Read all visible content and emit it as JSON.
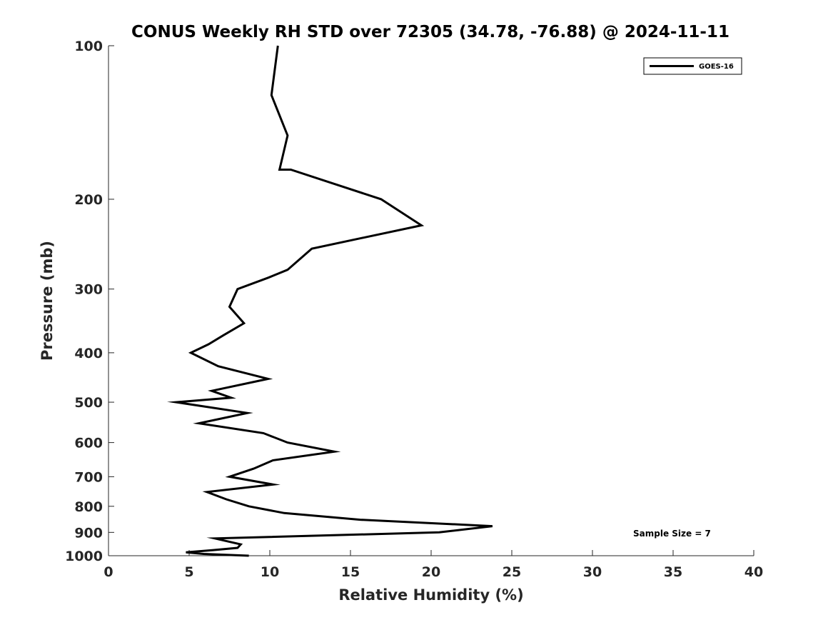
{
  "chart_data": {
    "type": "line",
    "title": "CONUS Weekly RH STD over 72305 (34.78, -76.88) @ 2024-11-11",
    "xlabel": "Relative Humidity (%)",
    "ylabel": "Pressure (mb)",
    "xlim": [
      0,
      40
    ],
    "ylim": [
      100,
      1000
    ],
    "y_scale": "log",
    "y_direction": "reversed",
    "grid": false,
    "legend_position": "top-right",
    "x_ticks": [
      0,
      5,
      10,
      15,
      20,
      25,
      30,
      35,
      40
    ],
    "y_ticks": [
      100,
      200,
      300,
      400,
      500,
      600,
      700,
      800,
      900,
      1000
    ],
    "annotation": "Sample Size = 7",
    "series": [
      {
        "name": "GOES-16",
        "color": "#000000",
        "points": [
          {
            "x": 10.5,
            "y": 100
          },
          {
            "x": 10.1,
            "y": 125
          },
          {
            "x": 11.1,
            "y": 150
          },
          {
            "x": 10.6,
            "y": 175
          },
          {
            "x": 11.3,
            "y": 175
          },
          {
            "x": 16.9,
            "y": 200
          },
          {
            "x": 19.4,
            "y": 225
          },
          {
            "x": 12.6,
            "y": 250
          },
          {
            "x": 11.1,
            "y": 275
          },
          {
            "x": 9.9,
            "y": 285
          },
          {
            "x": 8.0,
            "y": 300
          },
          {
            "x": 7.5,
            "y": 325
          },
          {
            "x": 8.4,
            "y": 350
          },
          {
            "x": 7.1,
            "y": 370
          },
          {
            "x": 6.2,
            "y": 385
          },
          {
            "x": 5.1,
            "y": 400
          },
          {
            "x": 6.8,
            "y": 425
          },
          {
            "x": 9.9,
            "y": 450
          },
          {
            "x": 6.4,
            "y": 475
          },
          {
            "x": 7.6,
            "y": 490
          },
          {
            "x": 4.2,
            "y": 500
          },
          {
            "x": 8.6,
            "y": 525
          },
          {
            "x": 5.6,
            "y": 550
          },
          {
            "x": 9.6,
            "y": 575
          },
          {
            "x": 11.1,
            "y": 600
          },
          {
            "x": 14.0,
            "y": 625
          },
          {
            "x": 10.2,
            "y": 650
          },
          {
            "x": 9.0,
            "y": 675
          },
          {
            "x": 7.5,
            "y": 700
          },
          {
            "x": 10.2,
            "y": 725
          },
          {
            "x": 6.1,
            "y": 750
          },
          {
            "x": 7.3,
            "y": 775
          },
          {
            "x": 8.7,
            "y": 800
          },
          {
            "x": 10.9,
            "y": 825
          },
          {
            "x": 15.6,
            "y": 850
          },
          {
            "x": 23.8,
            "y": 875
          },
          {
            "x": 20.5,
            "y": 900
          },
          {
            "x": 6.6,
            "y": 925
          },
          {
            "x": 8.2,
            "y": 950
          },
          {
            "x": 8.0,
            "y": 965
          },
          {
            "x": 6.5,
            "y": 975
          },
          {
            "x": 4.8,
            "y": 985
          },
          {
            "x": 5.9,
            "y": 992
          },
          {
            "x": 8.7,
            "y": 1000
          }
        ]
      }
    ]
  }
}
